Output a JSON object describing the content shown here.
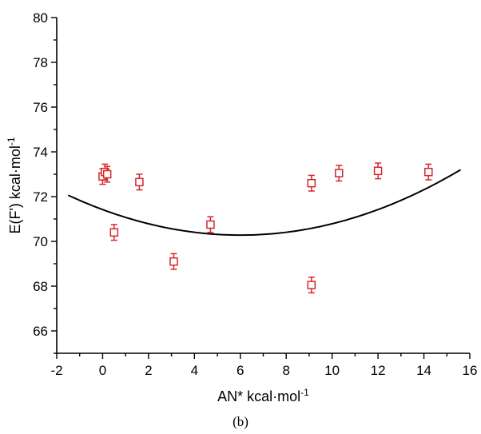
{
  "chart_data": {
    "type": "scatter",
    "xlabel": "AN* kcal·mol",
    "xlabel_sup": "-1",
    "ylabel": "E(F') kcal·mol",
    "ylabel_sup": "-1",
    "caption": "(b)",
    "xlim": [
      -2,
      16
    ],
    "ylim": [
      65,
      80
    ],
    "x_ticks": [
      -2,
      0,
      2,
      4,
      6,
      8,
      10,
      12,
      14,
      16
    ],
    "y_ticks": [
      66,
      68,
      70,
      72,
      74,
      76,
      78,
      80
    ],
    "grid": false,
    "marker_color": "#d62728",
    "curve_color": "#000000",
    "points": [
      {
        "x": 0.0,
        "y": 72.9,
        "err": 0.35
      },
      {
        "x": 0.1,
        "y": 73.1,
        "err": 0.35
      },
      {
        "x": 0.2,
        "y": 73.0,
        "err": 0.35
      },
      {
        "x": 0.5,
        "y": 70.4,
        "err": 0.35
      },
      {
        "x": 1.6,
        "y": 72.65,
        "err": 0.35
      },
      {
        "x": 3.1,
        "y": 69.1,
        "err": 0.35
      },
      {
        "x": 4.7,
        "y": 70.75,
        "err": 0.35
      },
      {
        "x": 9.1,
        "y": 72.6,
        "err": 0.35
      },
      {
        "x": 9.1,
        "y": 68.05,
        "err": 0.35
      },
      {
        "x": 10.3,
        "y": 73.05,
        "err": 0.35
      },
      {
        "x": 12.0,
        "y": 73.15,
        "err": 0.35
      },
      {
        "x": 14.2,
        "y": 73.1,
        "err": 0.35
      }
    ],
    "fit_curve": {
      "x_range": [
        -1.5,
        15.6
      ],
      "vertex_x": 6.0,
      "vertex_y": 70.28,
      "a": 0.0317
    }
  }
}
